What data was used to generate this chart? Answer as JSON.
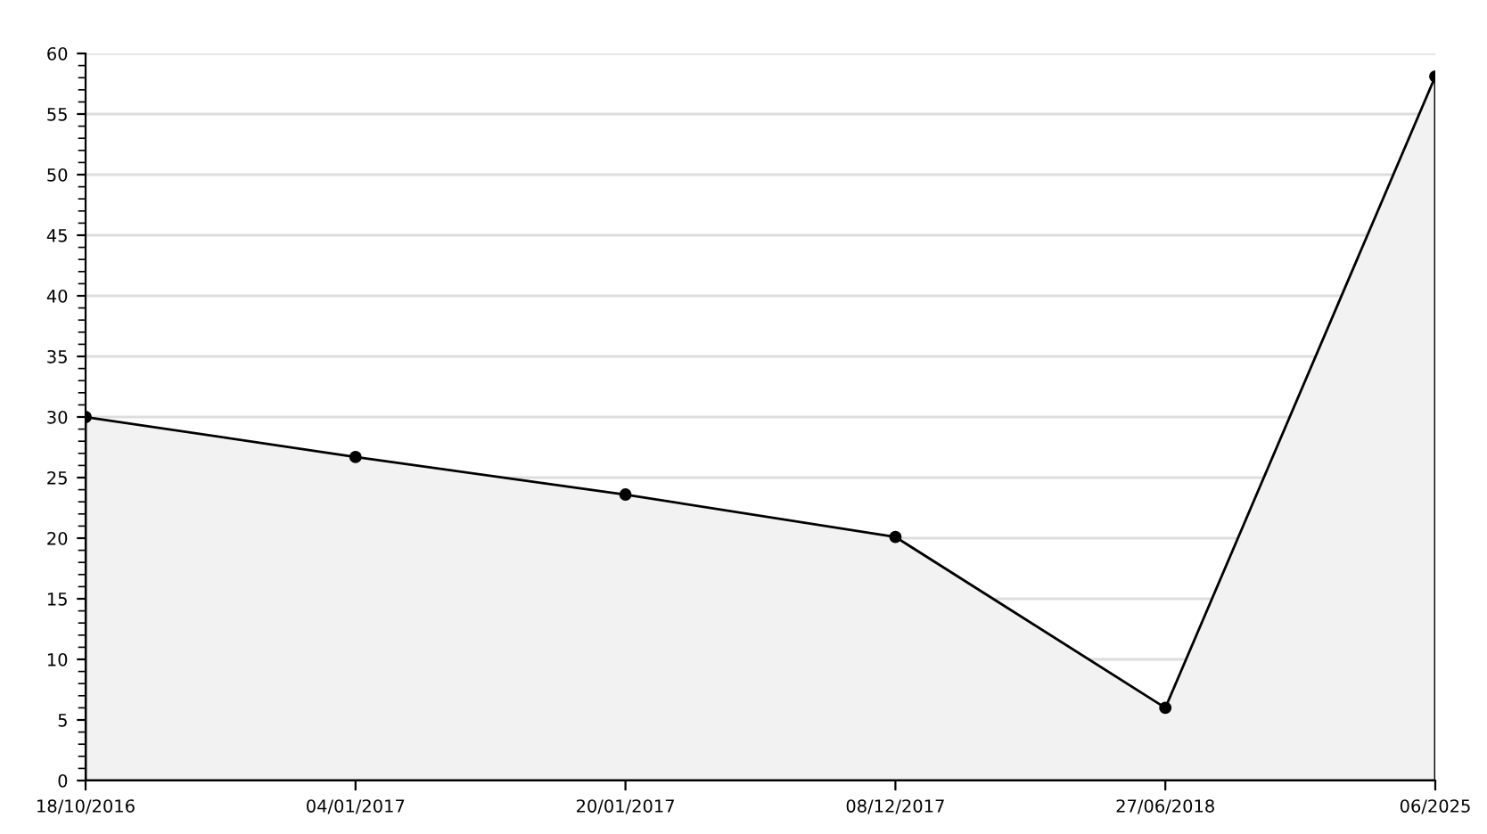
{
  "chart_data": {
    "type": "area",
    "categories": [
      "18/10/2016",
      "04/01/2017",
      "20/01/2017",
      "08/12/2017",
      "27/06/2018",
      "06/2025"
    ],
    "series": [
      {
        "color": "#000000",
        "values": [
          30,
          26.7,
          23.6,
          20.1,
          6,
          58.1
        ]
      }
    ],
    "ylim": [
      0,
      60
    ],
    "yticks": [
      0,
      5,
      10,
      15,
      20,
      25,
      30,
      35,
      40,
      45,
      50,
      55,
      60
    ],
    "grid": "y",
    "marker": "circle",
    "line_style": "solid"
  }
}
